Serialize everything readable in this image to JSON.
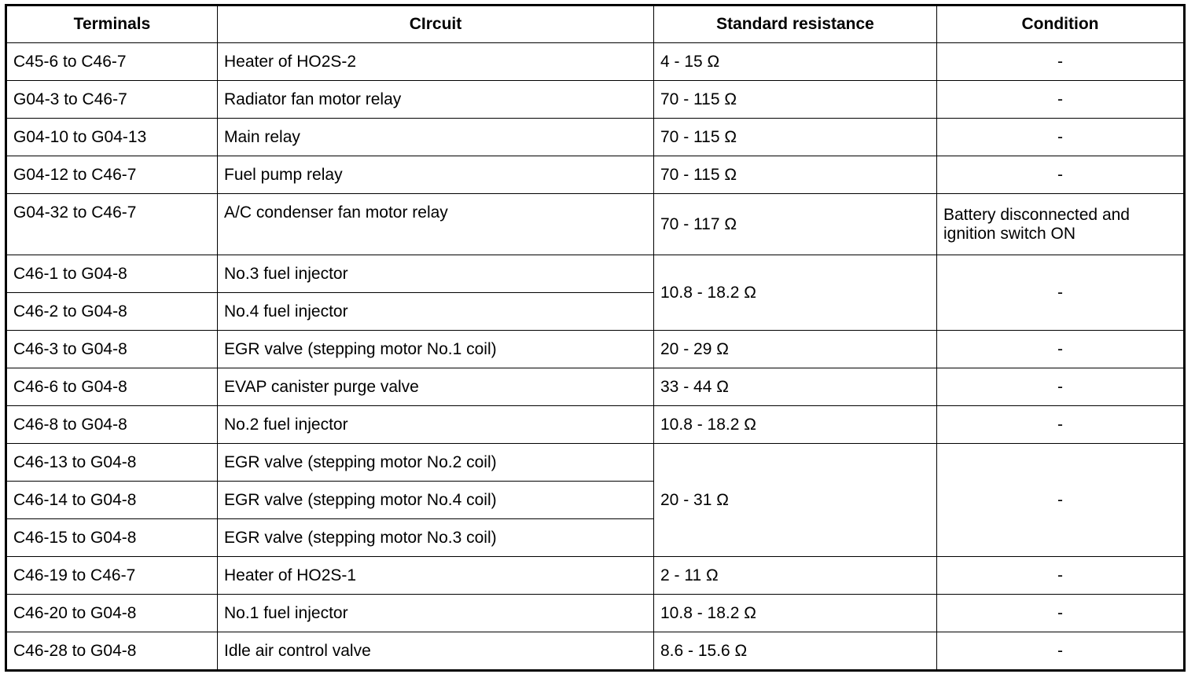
{
  "headers": {
    "terminals": "Terminals",
    "circuit": "CIrcuit",
    "resistance": "Standard resistance",
    "condition": "Condition"
  },
  "rows": [
    {
      "terminals": "C45-6 to C46-7",
      "circuit": "Heater of HO2S-2",
      "resistance": "4 - 15 Ω",
      "condition": "-"
    },
    {
      "terminals": "G04-3 to C46-7",
      "circuit": "Radiator fan motor relay",
      "resistance": "70 - 115 Ω",
      "condition": "-"
    },
    {
      "terminals": "G04-10 to G04-13",
      "circuit": "Main relay",
      "resistance": "70 - 115 Ω",
      "condition": "-"
    },
    {
      "terminals": "G04-12 to C46-7",
      "circuit": "Fuel pump relay",
      "resistance": "70 - 115 Ω",
      "condition": "-"
    },
    {
      "terminals": "G04-32 to C46-7",
      "circuit": "A/C condenser fan motor relay",
      "resistance": "70 - 117 Ω",
      "condition": "Battery disconnected and ignition switch ON"
    },
    {
      "terminals": "C46-1 to G04-8",
      "circuit": "No.3 fuel injector",
      "resistance": "10.8 - 18.2 Ω",
      "condition": "-"
    },
    {
      "terminals": "C46-2 to G04-8",
      "circuit": "No.4 fuel injector"
    },
    {
      "terminals": "C46-3 to G04-8",
      "circuit": "EGR valve (stepping motor No.1 coil)",
      "resistance": "20 - 29 Ω",
      "condition": "-"
    },
    {
      "terminals": "C46-6 to G04-8",
      "circuit": "EVAP canister purge valve",
      "resistance": "33 - 44 Ω",
      "condition": "-"
    },
    {
      "terminals": "C46-8 to G04-8",
      "circuit": "No.2 fuel injector",
      "resistance": "10.8 - 18.2 Ω",
      "condition": "-"
    },
    {
      "terminals": "C46-13 to G04-8",
      "circuit": "EGR valve (stepping motor No.2 coil)",
      "resistance": "20 - 31 Ω",
      "condition": "-"
    },
    {
      "terminals": "C46-14 to G04-8",
      "circuit": "EGR valve (stepping motor No.4 coil)"
    },
    {
      "terminals": "C46-15 to G04-8",
      "circuit": "EGR valve (stepping motor No.3 coil)"
    },
    {
      "terminals": "C46-19 to C46-7",
      "circuit": "Heater of HO2S-1",
      "resistance": "2 - 11 Ω",
      "condition": "-"
    },
    {
      "terminals": "C46-20 to G04-8",
      "circuit": "No.1 fuel injector",
      "resistance": "10.8 - 18.2 Ω",
      "condition": "-"
    },
    {
      "terminals": "C46-28 to G04-8",
      "circuit": "Idle air control valve",
      "resistance": "8.6 - 15.6 Ω",
      "condition": "-"
    }
  ]
}
